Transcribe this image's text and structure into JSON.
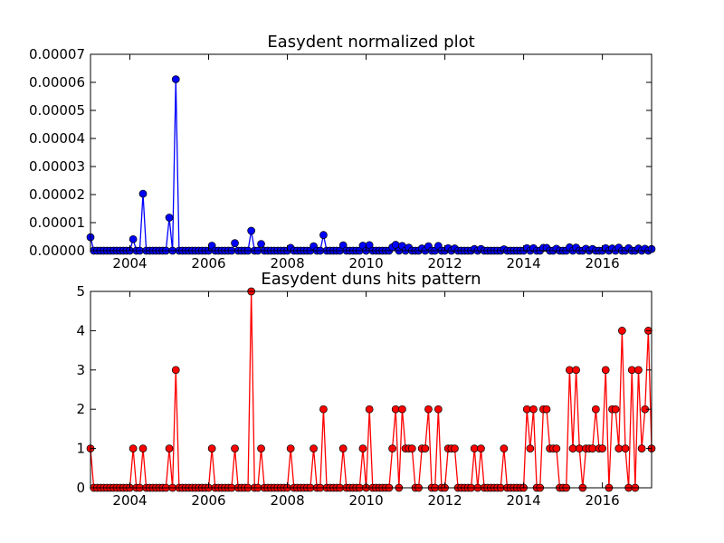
{
  "chart_data": [
    {
      "type": "line",
      "title": "Easydent normalized plot",
      "xlabel": "",
      "ylabel": "",
      "xlim": [
        2003.0,
        2017.25
      ],
      "ylim": [
        0,
        7e-05
      ],
      "x_ticks": [
        "2004",
        "2006",
        "2008",
        "2010",
        "2012",
        "2014",
        "2016"
      ],
      "y_ticks": [
        "0.00000",
        "0.00001",
        "0.00002",
        "0.00003",
        "0.00004",
        "0.00005",
        "0.00006",
        "0.00007"
      ],
      "grid": false,
      "series": [
        {
          "color": "#0000ff",
          "marker_color": "#0000ff",
          "points": [
            [
              2003.0,
              4.8e-06
            ],
            [
              2004.08,
              4.1e-06
            ],
            [
              2004.33,
              2.03e-05
            ],
            [
              2005.0,
              1.18e-05
            ],
            [
              2005.17,
              6.11e-05
            ],
            [
              2006.08,
              1.8e-06
            ],
            [
              2006.67,
              2.7e-06
            ],
            [
              2007.08,
              7.1e-06
            ],
            [
              2007.33,
              2.4e-06
            ],
            [
              2008.08,
              1e-06
            ],
            [
              2008.67,
              1.6e-06
            ],
            [
              2008.92,
              5.6e-06
            ],
            [
              2009.42,
              1.9e-06
            ],
            [
              2009.92,
              1.8e-06
            ],
            [
              2010.08,
              2e-06
            ],
            [
              2010.67,
              1.2e-06
            ],
            [
              2010.75,
              2.1e-06
            ],
            [
              2010.92,
              1.7e-06
            ],
            [
              2011.08,
              1.1e-06
            ],
            [
              2011.42,
              8e-07
            ],
            [
              2011.58,
              1.6e-06
            ],
            [
              2011.83,
              1.7e-06
            ],
            [
              2012.08,
              9e-07
            ],
            [
              2012.25,
              8e-07
            ],
            [
              2012.75,
              6e-07
            ],
            [
              2012.92,
              6e-07
            ],
            [
              2013.5,
              5e-07
            ],
            [
              2014.08,
              9e-07
            ],
            [
              2014.25,
              9e-07
            ],
            [
              2014.5,
              1e-06
            ],
            [
              2014.58,
              1e-06
            ],
            [
              2014.83,
              7e-07
            ],
            [
              2015.17,
              1.2e-06
            ],
            [
              2015.33,
              1.1e-06
            ],
            [
              2015.58,
              7e-07
            ],
            [
              2015.75,
              6e-07
            ],
            [
              2016.08,
              9e-07
            ],
            [
              2016.25,
              8e-07
            ],
            [
              2016.42,
              1.1e-06
            ],
            [
              2016.67,
              9e-07
            ],
            [
              2016.92,
              8e-07
            ],
            [
              2017.08,
              7e-07
            ],
            [
              2017.25,
              6e-07
            ]
          ]
        }
      ]
    },
    {
      "type": "line",
      "title": "Easydent duns hits pattern",
      "xlabel": "",
      "ylabel": "",
      "xlim": [
        2003.0,
        2017.25
      ],
      "ylim": [
        0,
        5
      ],
      "x_ticks": [
        "2004",
        "2006",
        "2008",
        "2010",
        "2012",
        "2014",
        "2016"
      ],
      "y_ticks": [
        "0",
        "1",
        "2",
        "3",
        "4",
        "5"
      ],
      "grid": false,
      "series": [
        {
          "color": "#ff0000",
          "marker_color": "#ff0000",
          "points": [
            [
              2003.0,
              1
            ],
            [
              2004.08,
              1
            ],
            [
              2004.33,
              1
            ],
            [
              2005.0,
              1
            ],
            [
              2005.17,
              3
            ],
            [
              2006.08,
              1
            ],
            [
              2006.67,
              1
            ],
            [
              2007.08,
              5
            ],
            [
              2007.33,
              1
            ],
            [
              2008.08,
              1
            ],
            [
              2008.67,
              1
            ],
            [
              2008.92,
              2
            ],
            [
              2009.42,
              1
            ],
            [
              2009.92,
              1
            ],
            [
              2010.08,
              2
            ],
            [
              2010.67,
              1
            ],
            [
              2010.75,
              2
            ],
            [
              2010.92,
              2
            ],
            [
              2011.0,
              1
            ],
            [
              2011.08,
              1
            ],
            [
              2011.17,
              1
            ],
            [
              2011.42,
              1
            ],
            [
              2011.5,
              1
            ],
            [
              2011.58,
              2
            ],
            [
              2011.83,
              2
            ],
            [
              2012.08,
              1
            ],
            [
              2012.17,
              1
            ],
            [
              2012.25,
              1
            ],
            [
              2012.75,
              1
            ],
            [
              2012.92,
              1
            ],
            [
              2013.5,
              1
            ],
            [
              2014.08,
              2
            ],
            [
              2014.17,
              1
            ],
            [
              2014.25,
              2
            ],
            [
              2014.5,
              2
            ],
            [
              2014.58,
              2
            ],
            [
              2014.67,
              1
            ],
            [
              2014.75,
              1
            ],
            [
              2014.83,
              1
            ],
            [
              2015.17,
              3
            ],
            [
              2015.25,
              1
            ],
            [
              2015.33,
              3
            ],
            [
              2015.42,
              1
            ],
            [
              2015.58,
              1
            ],
            [
              2015.67,
              1
            ],
            [
              2015.75,
              1
            ],
            [
              2015.83,
              2
            ],
            [
              2015.92,
              1
            ],
            [
              2016.0,
              1
            ],
            [
              2016.08,
              3
            ],
            [
              2016.25,
              2
            ],
            [
              2016.33,
              2
            ],
            [
              2016.42,
              1
            ],
            [
              2016.5,
              4
            ],
            [
              2016.58,
              1
            ],
            [
              2016.75,
              3
            ],
            [
              2016.92,
              3
            ],
            [
              2017.0,
              1
            ],
            [
              2017.08,
              2
            ],
            [
              2017.17,
              4
            ],
            [
              2017.25,
              1
            ]
          ]
        }
      ]
    }
  ]
}
